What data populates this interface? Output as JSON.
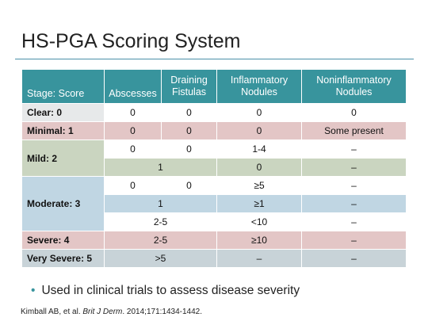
{
  "slide": {
    "title": "HS-PGA Scoring System"
  },
  "table": {
    "headers": {
      "stage": "Stage: Score",
      "abscesses": "Abscesses",
      "draining_fistulas": "Draining Fistulas",
      "inflammatory_nodules": "Inflammatory Nodules",
      "noninflammatory_nodules": "Noninflammatory Nodules"
    },
    "rows": {
      "clear": {
        "stage": "Clear: 0",
        "abscesses": "0",
        "fistulas": "0",
        "inflammatory": "0",
        "noninflammatory": "0"
      },
      "minimal": {
        "stage": "Minimal: 1",
        "abscesses": "0",
        "fistulas": "0",
        "inflammatory": "0",
        "noninflammatory": "Some present"
      },
      "mild": {
        "stage": "Mild: 2",
        "a": {
          "abscesses": "0",
          "fistulas": "0",
          "inflammatory": "1-4",
          "noninflammatory": "–"
        },
        "b": {
          "combined": "1",
          "inflammatory": "0",
          "noninflammatory": "–"
        }
      },
      "moderate": {
        "stage": "Moderate: 3",
        "a": {
          "abscesses": "0",
          "fistulas": "0",
          "inflammatory": "≥5",
          "noninflammatory": "–"
        },
        "b": {
          "combined": "1",
          "inflammatory": "≥1",
          "noninflammatory": "–"
        },
        "c": {
          "combined": "2-5",
          "inflammatory": "<10",
          "noninflammatory": "–"
        }
      },
      "severe": {
        "stage": "Severe: 4",
        "combined": "2-5",
        "inflammatory": "≥10",
        "noninflammatory": "–"
      },
      "very_severe": {
        "stage": "Very Severe: 5",
        "combined": ">5",
        "inflammatory": "–",
        "noninflammatory": "–"
      }
    }
  },
  "bullet": {
    "marker": "•",
    "text": "Used in clinical trials to assess disease severity"
  },
  "citation": {
    "authors": "Kimball AB, et al. ",
    "journal": "Brit J Derm",
    "details": ". 2014;171:1434-1442."
  }
}
